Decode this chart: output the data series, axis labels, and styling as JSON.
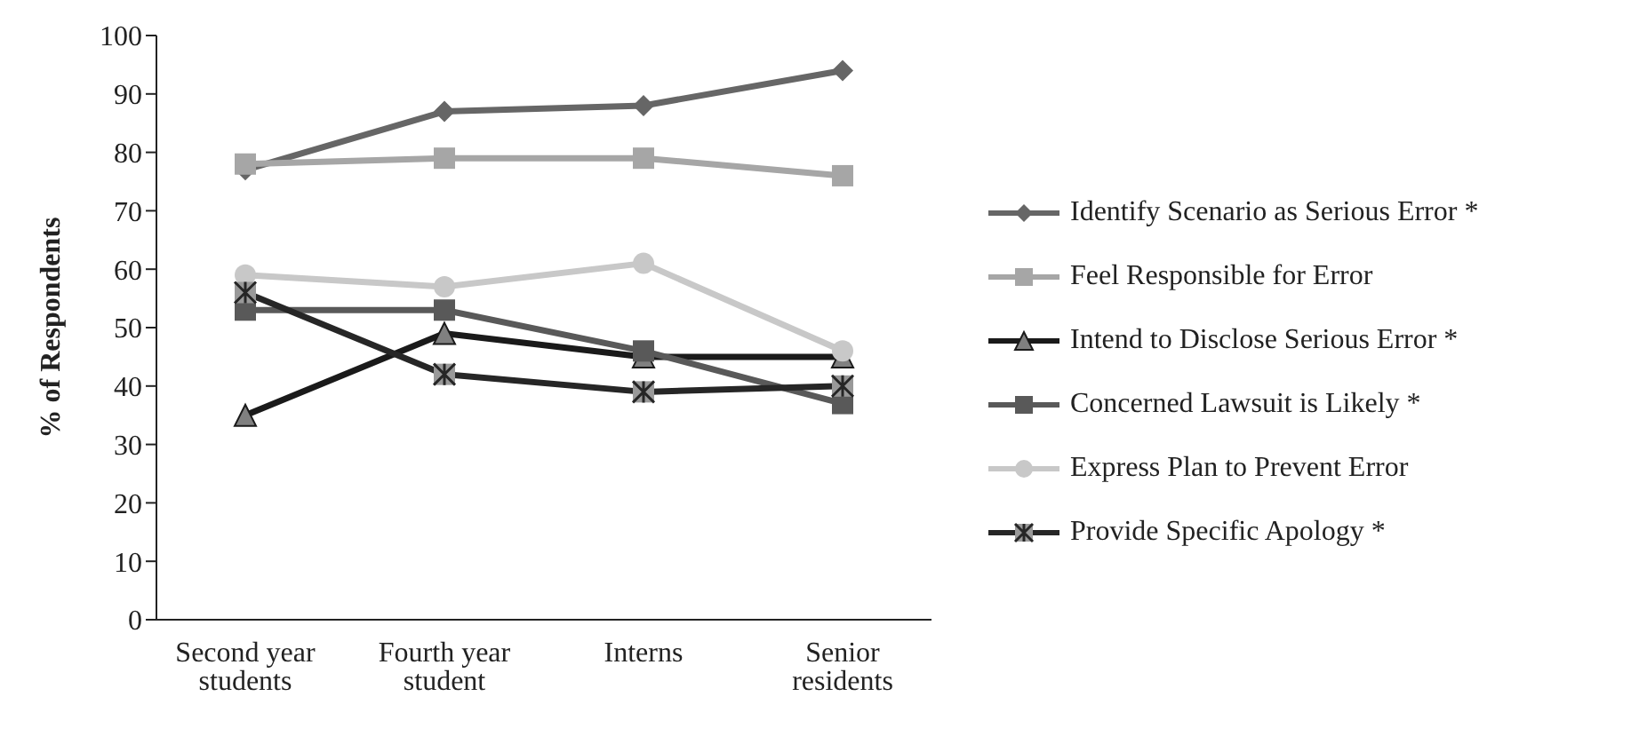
{
  "chart_data": {
    "type": "line",
    "ylabel": "% of Respondents",
    "categories": [
      "Second year students",
      "Fourth year student",
      "Interns",
      "Senior residents"
    ],
    "ylim": [
      0,
      100
    ],
    "yticks": [
      0,
      10,
      20,
      30,
      40,
      50,
      60,
      70,
      80,
      90,
      100
    ],
    "grid": false,
    "legend": "right",
    "series": [
      {
        "name": "Identify Scenario as Serious Error *",
        "color": "#666666",
        "marker": "diamond",
        "values": [
          77,
          87,
          88,
          94
        ]
      },
      {
        "name": "Feel Responsible for Error",
        "color": "#a6a6a6",
        "marker": "square",
        "values": [
          78,
          79,
          79,
          76
        ]
      },
      {
        "name": "Intend to Disclose Serious Error *",
        "color": "#1a1a1a",
        "marker": "triangle",
        "values": [
          35,
          49,
          45,
          45
        ]
      },
      {
        "name": "Concerned Lawsuit is Likely *",
        "color": "#595959",
        "marker": "square",
        "values": [
          53,
          53,
          46,
          37
        ]
      },
      {
        "name": "Express Plan to Prevent Error",
        "color": "#c8c8c8",
        "marker": "circle",
        "values": [
          59,
          57,
          61,
          46
        ]
      },
      {
        "name": "Provide Specific Apology *",
        "color": "#262626",
        "marker": "cross",
        "values": [
          56,
          42,
          39,
          40
        ]
      }
    ]
  }
}
